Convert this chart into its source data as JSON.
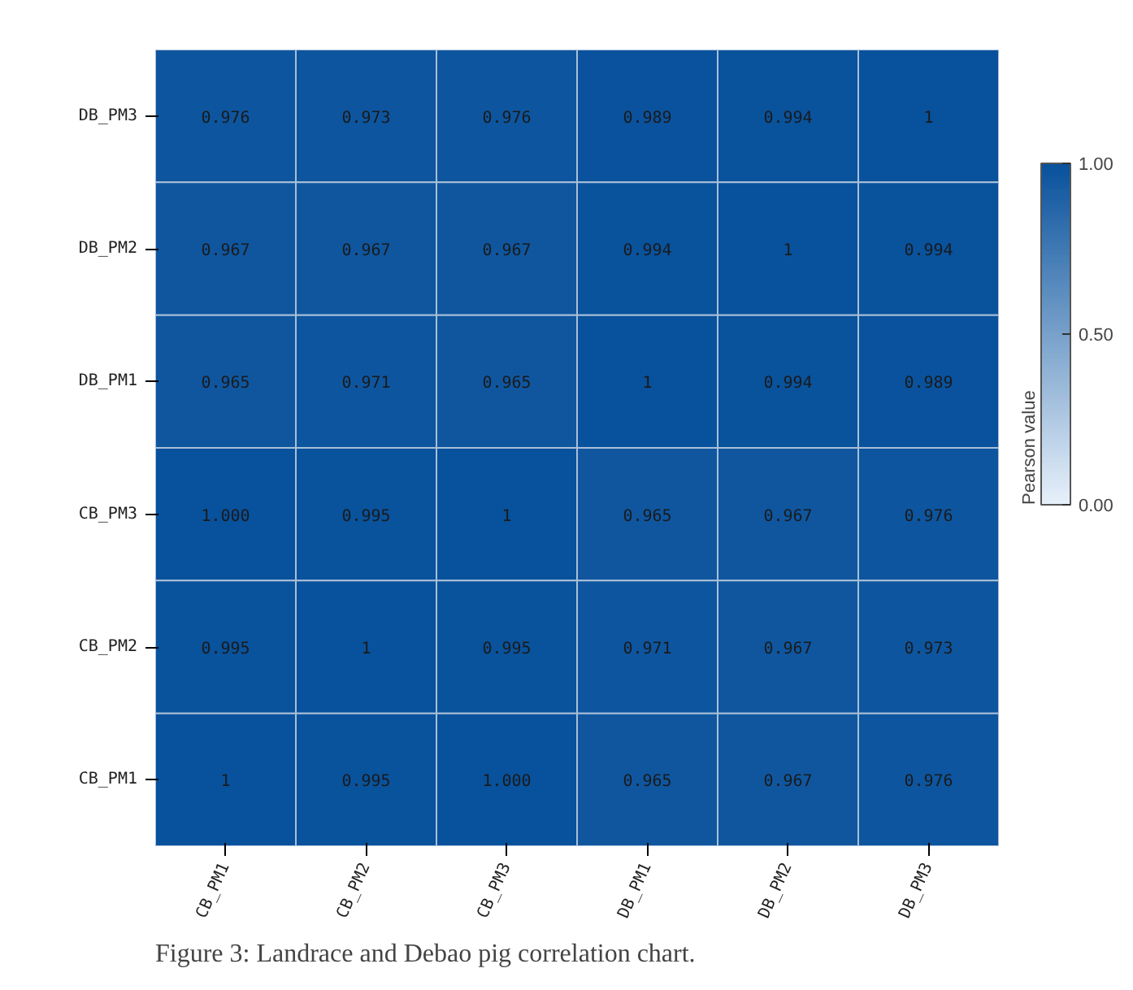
{
  "chart_data": {
    "type": "heatmap",
    "categories": [
      "CB_PM1",
      "CB_PM2",
      "CB_PM3",
      "DB_PM1",
      "DB_PM2",
      "DB_PM3"
    ],
    "y_categories": [
      "DB_PM3",
      "DB_PM2",
      "DB_PM1",
      "CB_PM3",
      "CB_PM2",
      "CB_PM1"
    ],
    "cells": [
      [
        0.976,
        0.973,
        0.976,
        0.989,
        0.994,
        1
      ],
      [
        0.967,
        0.967,
        0.967,
        0.994,
        1,
        0.994
      ],
      [
        0.965,
        0.971,
        0.965,
        1,
        0.994,
        0.989
      ],
      [
        1.0,
        0.995,
        1,
        0.965,
        0.967,
        0.976
      ],
      [
        0.995,
        1,
        0.995,
        0.971,
        0.967,
        0.973
      ],
      [
        1,
        0.995,
        1.0,
        0.965,
        0.967,
        0.976
      ]
    ],
    "cell_labels": [
      [
        "0.976",
        "0.973",
        "0.976",
        "0.989",
        "0.994",
        "1"
      ],
      [
        "0.967",
        "0.967",
        "0.967",
        "0.994",
        "1",
        "0.994"
      ],
      [
        "0.965",
        "0.971",
        "0.965",
        "1",
        "0.994",
        "0.989"
      ],
      [
        "1.000",
        "0.995",
        "1",
        "0.965",
        "0.967",
        "0.976"
      ],
      [
        "0.995",
        "1",
        "0.995",
        "0.971",
        "0.967",
        "0.973"
      ],
      [
        "1",
        "0.995",
        "1.000",
        "0.965",
        "0.967",
        "0.976"
      ]
    ],
    "clabel": "Pearson value",
    "clim": [
      0,
      1
    ],
    "cticks": [
      {
        "value": 0,
        "label": "0.00"
      },
      {
        "value": 0.5,
        "label": "0.50"
      },
      {
        "value": 1,
        "label": "1.00"
      }
    ],
    "annotations": [
      "Figure 3: Landrace and Debao pig correlation chart."
    ]
  }
}
